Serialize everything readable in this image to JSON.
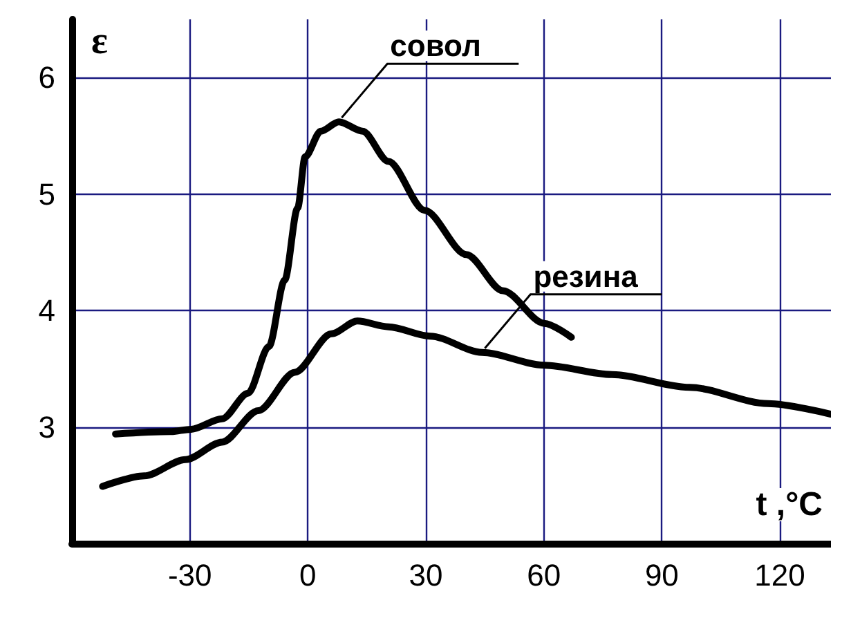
{
  "chart_data": {
    "type": "line",
    "xlabel": "t ,°C",
    "ylabel": "ε",
    "xlim": [
      -60,
      133
    ],
    "xticks": [
      -30,
      0,
      30,
      60,
      90,
      120
    ],
    "ylim": [
      2,
      6.5
    ],
    "yticks": [
      {
        "value": 2,
        "label": null
      },
      3,
      4,
      5,
      6
    ],
    "grid": true,
    "legend": false,
    "marker": "none",
    "line_style": "solid",
    "series": [
      {
        "name": "совол",
        "color": "#000000",
        "x": [
          -48.9,
          -35,
          -29.7,
          -21.8,
          -15.2,
          -9.9,
          -5.9,
          -2.6,
          -0.7,
          3.3,
          7.9,
          13.9,
          20.5,
          29.7,
          40.3,
          49.6,
          60.1,
          67
        ],
        "values": [
          2.94,
          2.96,
          2.98,
          3.07,
          3.29,
          3.69,
          4.26,
          4.88,
          5.32,
          5.54,
          5.62,
          5.54,
          5.28,
          4.86,
          4.48,
          4.17,
          3.89,
          3.77
        ]
      },
      {
        "name": "резина",
        "color": "#000000",
        "x": [
          -52.2,
          -41.6,
          -31.1,
          -21.8,
          -12.6,
          -3.3,
          6,
          12.6,
          20.5,
          31.1,
          44.3,
          60.1,
          77.3,
          97.1,
          117,
          133
        ],
        "values": [
          2.49,
          2.58,
          2.72,
          2.87,
          3.14,
          3.47,
          3.8,
          3.91,
          3.86,
          3.78,
          3.64,
          3.53,
          3.45,
          3.34,
          3.2,
          3.11
        ]
      }
    ]
  }
}
